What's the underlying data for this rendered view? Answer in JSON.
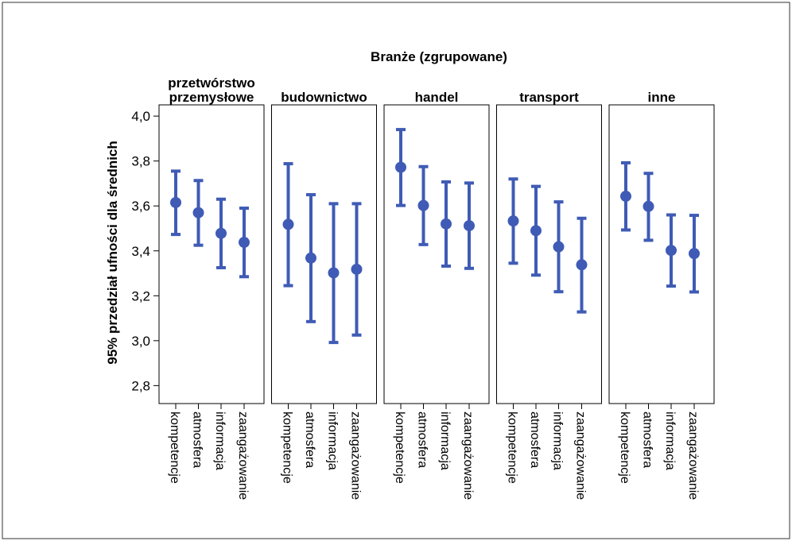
{
  "chart_data": {
    "type": "errorbar",
    "title": "Branże (zgrupowane)",
    "ylabel": "95% przedział ufności dla średnich",
    "ylim": [
      2.72,
      4.05
    ],
    "yticks": [
      2.8,
      3.0,
      3.2,
      3.4,
      3.6,
      3.8,
      4.0
    ],
    "ytick_labels": [
      "2,8",
      "3,0",
      "3,2",
      "3,4",
      "3,6",
      "3,8",
      "4,0"
    ],
    "grid": false,
    "categories": [
      "kompetencje",
      "atmosfera",
      "informacja",
      "zaangażowanie"
    ],
    "color": "#3f5bb5",
    "panels": [
      {
        "label": [
          "przetwórstwo",
          "przemysłowe"
        ],
        "means": [
          3.615,
          3.57,
          3.478,
          3.438
        ],
        "lower": [
          3.473,
          3.425,
          3.325,
          3.285
        ],
        "upper": [
          3.755,
          3.713,
          3.63,
          3.59
        ]
      },
      {
        "label": [
          "budownictwo"
        ],
        "means": [
          3.518,
          3.368,
          3.302,
          3.318
        ],
        "lower": [
          3.245,
          3.085,
          2.992,
          3.025
        ],
        "upper": [
          3.788,
          3.65,
          3.61,
          3.61
        ]
      },
      {
        "label": [
          "handel"
        ],
        "means": [
          3.772,
          3.602,
          3.52,
          3.512
        ],
        "lower": [
          3.602,
          3.428,
          3.332,
          3.322
        ],
        "upper": [
          3.94,
          3.775,
          3.707,
          3.702
        ]
      },
      {
        "label": [
          "transport"
        ],
        "means": [
          3.533,
          3.49,
          3.418,
          3.338
        ],
        "lower": [
          3.345,
          3.292,
          3.218,
          3.128
        ],
        "upper": [
          3.72,
          3.687,
          3.618,
          3.545
        ]
      },
      {
        "label": [
          "inne"
        ],
        "means": [
          3.643,
          3.598,
          3.402,
          3.388
        ],
        "lower": [
          3.493,
          3.447,
          3.243,
          3.217
        ],
        "upper": [
          3.792,
          3.745,
          3.56,
          3.558
        ]
      }
    ]
  }
}
